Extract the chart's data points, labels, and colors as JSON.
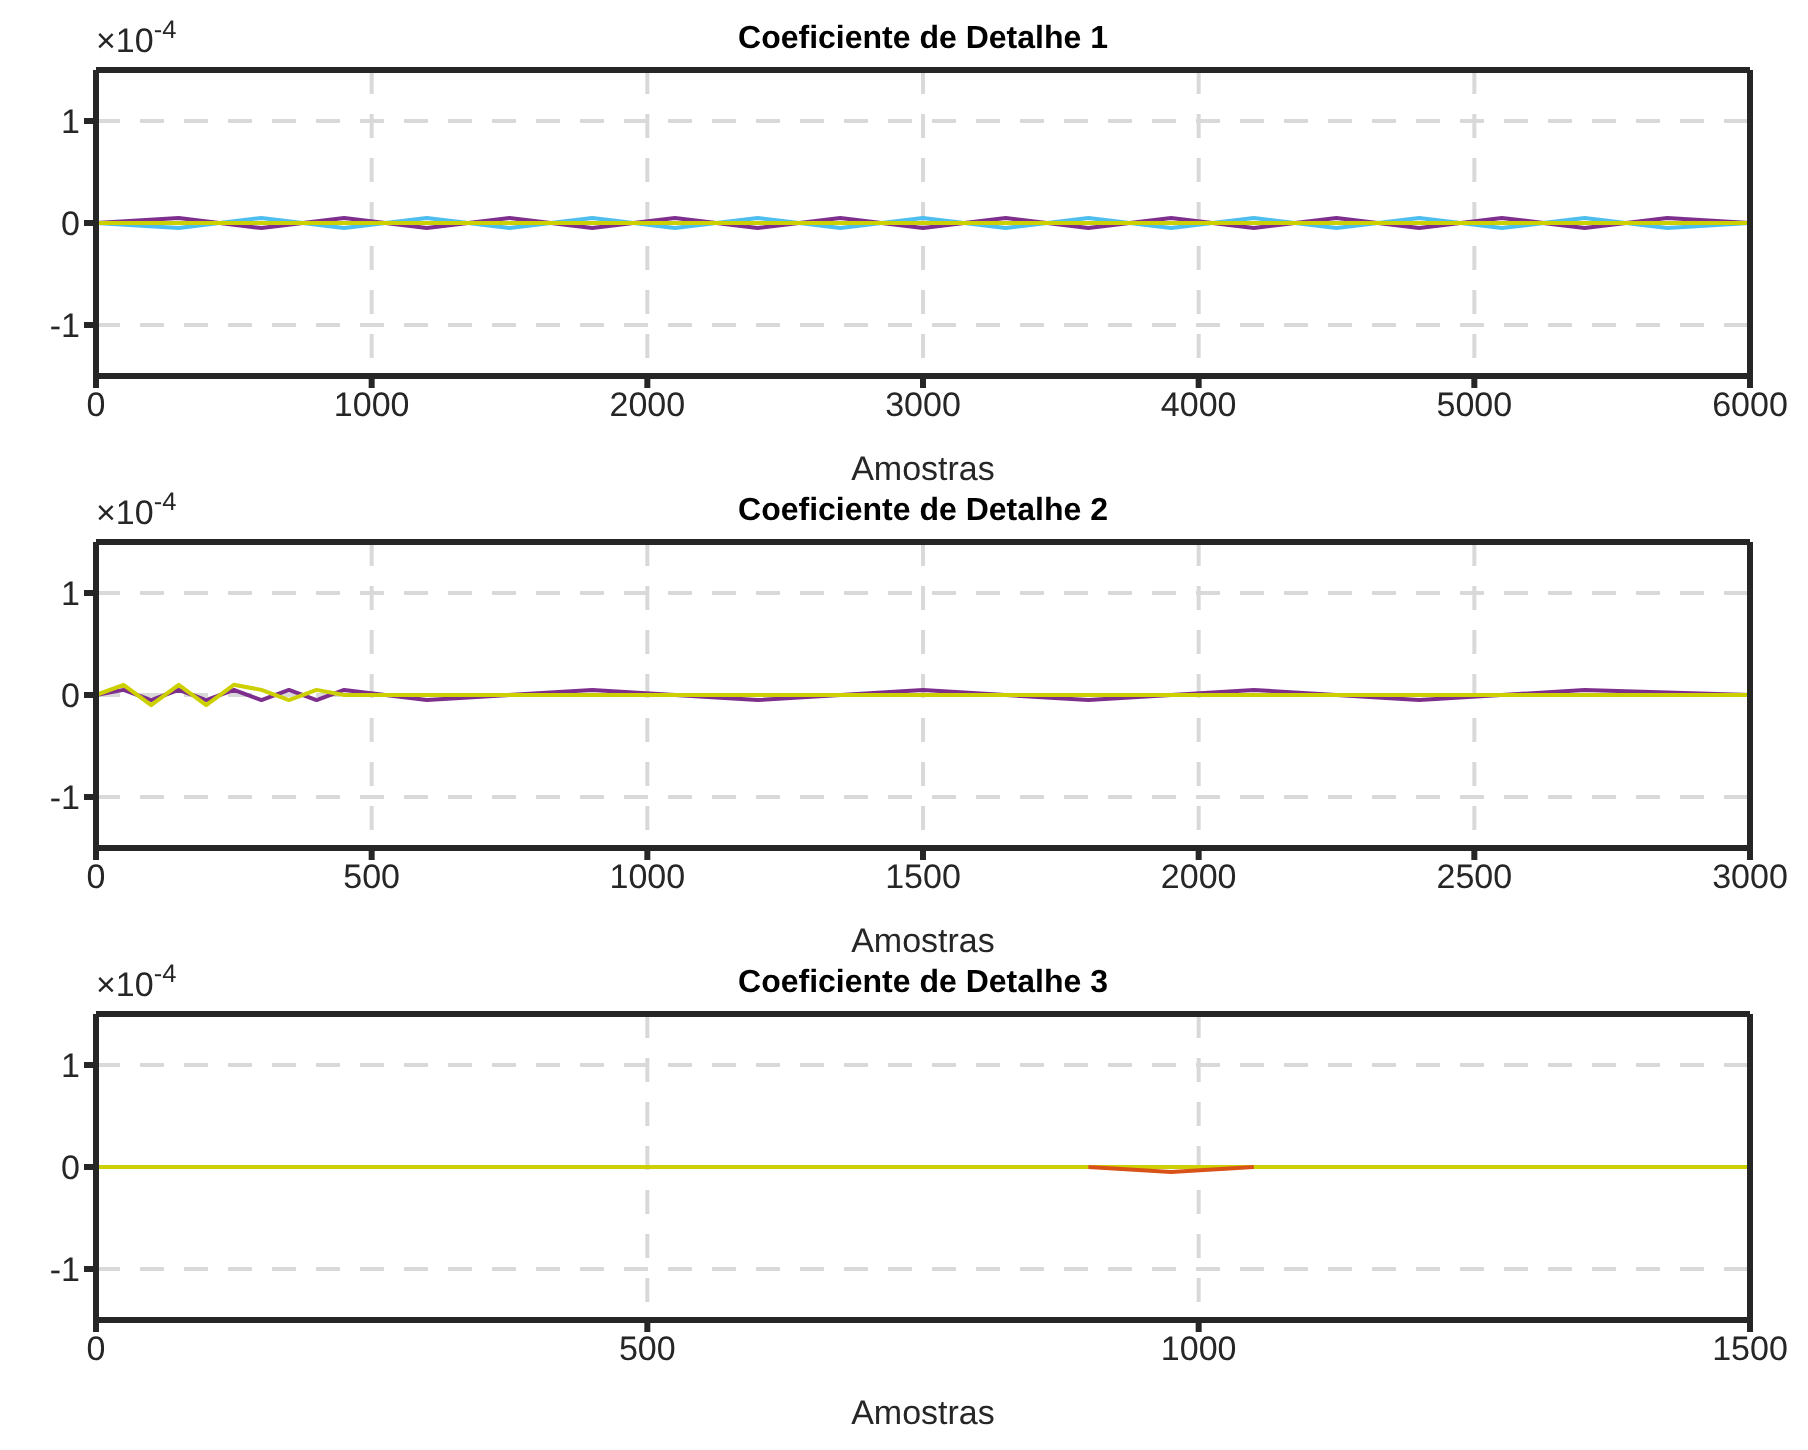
{
  "chart_data": [
    {
      "type": "line",
      "title": "Coeficiente de Detalhe 1",
      "xlabel": "Amostras",
      "annotations": [
        "×10$^{-4}$"
      ],
      "xlim": [
        0,
        6000
      ],
      "xticks": [
        0,
        1000,
        2000,
        3000,
        4000,
        5000,
        6000
      ],
      "ylim": [
        -1.5,
        1.5
      ],
      "yticks": [
        -1,
        0,
        1
      ],
      "grid": true,
      "marker": "none",
      "line_style": "solid",
      "x": [
        0,
        300,
        600,
        900,
        1200,
        1500,
        1800,
        2100,
        2400,
        2700,
        3000,
        3300,
        3600,
        3900,
        4200,
        4500,
        4800,
        5100,
        5400,
        5700,
        6000
      ],
      "series": [
        {
          "color": "#7e2f8e",
          "values": [
            0,
            0.05,
            -0.05,
            0.05,
            -0.05,
            0.05,
            -0.05,
            0.05,
            -0.05,
            0.05,
            -0.05,
            0.05,
            -0.05,
            0.05,
            -0.05,
            0.05,
            -0.05,
            0.05,
            -0.05,
            0.05,
            0
          ]
        },
        {
          "color": "#4dbeee",
          "values": [
            0,
            -0.05,
            0.05,
            -0.05,
            0.05,
            -0.05,
            0.05,
            -0.05,
            0.05,
            -0.05,
            0.05,
            -0.05,
            0.05,
            -0.05,
            0.05,
            -0.05,
            0.05,
            -0.05,
            0.05,
            -0.05,
            0
          ]
        },
        {
          "color": "#cdd000",
          "values": [
            0,
            0,
            0,
            0,
            0,
            0,
            0,
            0,
            0,
            0,
            0,
            0,
            0,
            0,
            0,
            0,
            0,
            0,
            0,
            0,
            0
          ]
        }
      ]
    },
    {
      "type": "line",
      "title": "Coeficiente de Detalhe 2",
      "xlabel": "Amostras",
      "annotations": [
        "×10$^{-4}$"
      ],
      "xlim": [
        0,
        3000
      ],
      "xticks": [
        0,
        500,
        1000,
        1500,
        2000,
        2500,
        3000
      ],
      "ylim": [
        -1.5,
        1.5
      ],
      "yticks": [
        -1,
        0,
        1
      ],
      "grid": true,
      "marker": "none",
      "line_style": "solid",
      "x": [
        0,
        50,
        100,
        150,
        200,
        250,
        300,
        350,
        400,
        450,
        600,
        900,
        1200,
        1500,
        1800,
        2100,
        2400,
        2700,
        3000
      ],
      "series": [
        {
          "color": "#7e2f8e",
          "values": [
            0,
            0.05,
            -0.05,
            0.05,
            -0.05,
            0.05,
            -0.05,
            0.05,
            -0.05,
            0.05,
            -0.05,
            0.05,
            -0.05,
            0.05,
            -0.05,
            0.05,
            -0.05,
            0.05,
            0
          ]
        },
        {
          "color": "#cdd000",
          "values": [
            0,
            0.1,
            -0.1,
            0.1,
            -0.1,
            0.1,
            0.05,
            -0.05,
            0.05,
            0,
            0,
            0,
            0,
            0,
            0,
            0,
            0,
            0,
            0
          ]
        }
      ]
    },
    {
      "type": "line",
      "title": "Coeficiente de Detalhe 3",
      "xlabel": "Amostras",
      "annotations": [
        "×10$^{-4}$"
      ],
      "xlim": [
        0,
        1500
      ],
      "xticks": [
        0,
        500,
        1000,
        1500
      ],
      "ylim": [
        -1.5,
        1.5
      ],
      "yticks": [
        -1,
        0,
        1
      ],
      "grid": true,
      "marker": "none",
      "line_style": "solid",
      "x": [
        0,
        150,
        300,
        450,
        600,
        750,
        900,
        975,
        1050,
        1200,
        1350,
        1500
      ],
      "series": [
        {
          "color": "#cdd000",
          "values": [
            0,
            0,
            0,
            0,
            0,
            0,
            0,
            0,
            0,
            0,
            0,
            0
          ]
        },
        {
          "color": "#d95319",
          "values": [
            null,
            null,
            null,
            null,
            null,
            null,
            0,
            -0.05,
            0,
            null,
            null,
            null
          ]
        }
      ]
    }
  ]
}
